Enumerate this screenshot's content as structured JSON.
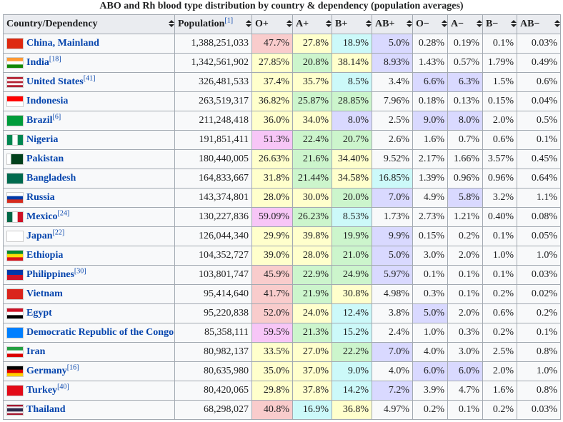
{
  "title": "ABO and Rh blood type distribution by country & dependency (population averages)",
  "table": {
    "headers": [
      {
        "text": "Country/Dependency"
      },
      {
        "text": "Population",
        "ref": "[1]"
      },
      {
        "text": "O+"
      },
      {
        "text": "A+"
      },
      {
        "text": "B+"
      },
      {
        "text": "AB+"
      },
      {
        "text": "O−"
      },
      {
        "text": "A−"
      },
      {
        "text": "B−"
      },
      {
        "text": "AB−"
      }
    ],
    "rows": [
      {
        "country": "China, Mainland",
        "population": "1,388,251,033",
        "cells": [
          "47.7%",
          "27.8%",
          "18.9%",
          "5.0%",
          "0.28%",
          "0.19%",
          "0.1%",
          "0.03%"
        ],
        "colors": [
          "#f9cccc",
          "#ffffcc",
          "#ccf9f9",
          "#d9d9ff",
          "#f8f9fa",
          "#f8f9fa",
          "#f8f9fa",
          "#f8f9fa"
        ]
      },
      {
        "country": "India",
        "ref": "[18]",
        "population": "1,342,561,902",
        "cells": [
          "27.85%",
          "20.8%",
          "38.14%",
          "8.93%",
          "1.43%",
          "0.57%",
          "1.79%",
          "0.49%"
        ],
        "colors": [
          "#ffffcc",
          "#ccf5cc",
          "#ffffcc",
          "#d9d9ff",
          "#f8f9fa",
          "#f8f9fa",
          "#f8f9fa",
          "#f8f9fa"
        ]
      },
      {
        "country": "United States",
        "ref": "[41]",
        "population": "326,481,533",
        "cells": [
          "37.4%",
          "35.7%",
          "8.5%",
          "3.4%",
          "6.6%",
          "6.3%",
          "1.5%",
          "0.6%"
        ],
        "colors": [
          "#ffffcc",
          "#ffffcc",
          "#ccf9f9",
          "#f8f9fa",
          "#d9d9ff",
          "#d9d9ff",
          "#f8f9fa",
          "#f8f9fa"
        ]
      },
      {
        "country": "Indonesia",
        "population": "263,519,317",
        "cells": [
          "36.82%",
          "25.87%",
          "28.85%",
          "7.96%",
          "0.18%",
          "0.13%",
          "0.15%",
          "0.04%"
        ],
        "colors": [
          "#ffffcc",
          "#ccf5cc",
          "#ccf5cc",
          "#f8f9fa",
          "#f8f9fa",
          "#f8f9fa",
          "#f8f9fa",
          "#f8f9fa"
        ]
      },
      {
        "country": "Brazil",
        "ref": "[6]",
        "population": "211,248,418",
        "cells": [
          "36.0%",
          "34.0%",
          "8.0%",
          "2.5%",
          "9.0%",
          "8.0%",
          "2.0%",
          "0.5%"
        ],
        "colors": [
          "#ffffcc",
          "#ffffcc",
          "#d9d9ff",
          "#f8f9fa",
          "#d9d9ff",
          "#d9d9ff",
          "#f8f9fa",
          "#f8f9fa"
        ]
      },
      {
        "country": "Nigeria",
        "population": "191,851,411",
        "cells": [
          "51.3%",
          "22.4%",
          "20.7%",
          "2.6%",
          "1.6%",
          "0.7%",
          "0.6%",
          "0.1%"
        ],
        "colors": [
          "#f7c6f7",
          "#ccf5cc",
          "#ccf5cc",
          "#f8f9fa",
          "#f8f9fa",
          "#f8f9fa",
          "#f8f9fa",
          "#f8f9fa"
        ]
      },
      {
        "country": "Pakistan",
        "population": "180,440,005",
        "cells": [
          "26.63%",
          "21.6%",
          "34.40%",
          "9.52%",
          "2.17%",
          "1.66%",
          "3.57%",
          "0.45%"
        ],
        "colors": [
          "#ffffcc",
          "#ccf5cc",
          "#ffffcc",
          "#f8f9fa",
          "#f8f9fa",
          "#f8f9fa",
          "#f8f9fa",
          "#f8f9fa"
        ]
      },
      {
        "country": "Bangladesh",
        "population": "164,833,667",
        "cells": [
          "31.8%",
          "21.44%",
          "34.58%",
          "16.85%",
          "1.39%",
          "0.96%",
          "0.96%",
          "0.64%"
        ],
        "colors": [
          "#ffffcc",
          "#ccf5cc",
          "#ffffcc",
          "#ccf9f9",
          "#f8f9fa",
          "#f8f9fa",
          "#f8f9fa",
          "#f8f9fa"
        ]
      },
      {
        "country": "Russia",
        "population": "143,374,801",
        "cells": [
          "28.0%",
          "30.0%",
          "20.0%",
          "7.0%",
          "4.9%",
          "5.8%",
          "3.2%",
          "1.1%"
        ],
        "colors": [
          "#ffffcc",
          "#ffffcc",
          "#ccf5cc",
          "#d9d9ff",
          "#f8f9fa",
          "#d9d9ff",
          "#f8f9fa",
          "#f8f9fa"
        ]
      },
      {
        "country": "Mexico",
        "ref": "[24]",
        "population": "130,227,836",
        "cells": [
          "59.09%",
          "26.23%",
          "8.53%",
          "1.73%",
          "2.73%",
          "1.21%",
          "0.40%",
          "0.08%"
        ],
        "colors": [
          "#f7c6f7",
          "#ccf5cc",
          "#ccf9f9",
          "#f8f9fa",
          "#f8f9fa",
          "#f8f9fa",
          "#f8f9fa",
          "#f8f9fa"
        ]
      },
      {
        "country": "Japan",
        "ref": "[22]",
        "population": "126,044,340",
        "cells": [
          "29.9%",
          "39.8%",
          "19.9%",
          "9.9%",
          "0.15%",
          "0.2%",
          "0.1%",
          "0.05%"
        ],
        "colors": [
          "#ffffcc",
          "#ffffcc",
          "#ccf5cc",
          "#d9d9ff",
          "#f8f9fa",
          "#f8f9fa",
          "#f8f9fa",
          "#f8f9fa"
        ]
      },
      {
        "country": "Ethiopia",
        "population": "104,352,727",
        "cells": [
          "39.0%",
          "28.0%",
          "21.0%",
          "5.0%",
          "3.0%",
          "2.0%",
          "1.0%",
          "1.0%"
        ],
        "colors": [
          "#ffffcc",
          "#ffffcc",
          "#ccf5cc",
          "#d9d9ff",
          "#f8f9fa",
          "#f8f9fa",
          "#f8f9fa",
          "#f8f9fa"
        ]
      },
      {
        "country": "Philippines",
        "ref": "[30]",
        "population": "103,801,747",
        "cells": [
          "45.9%",
          "22.9%",
          "24.9%",
          "5.97%",
          "0.1%",
          "0.1%",
          "0.1%",
          "0.03%"
        ],
        "colors": [
          "#f9cccc",
          "#ccf5cc",
          "#ccf5cc",
          "#d9d9ff",
          "#f8f9fa",
          "#f8f9fa",
          "#f8f9fa",
          "#f8f9fa"
        ]
      },
      {
        "country": "Vietnam",
        "population": "95,414,640",
        "cells": [
          "41.7%",
          "21.9%",
          "30.8%",
          "4.98%",
          "0.3%",
          "0.1%",
          "0.2%",
          "0.02%"
        ],
        "colors": [
          "#f9cccc",
          "#ccf5cc",
          "#ffffcc",
          "#f8f9fa",
          "#f8f9fa",
          "#f8f9fa",
          "#f8f9fa",
          "#f8f9fa"
        ]
      },
      {
        "country": "Egypt",
        "population": "95,220,838",
        "cells": [
          "52.0%",
          "24.0%",
          "12.4%",
          "3.8%",
          "5.0%",
          "2.0%",
          "0.6%",
          "0.2%"
        ],
        "colors": [
          "#f9cccc",
          "#ffffcc",
          "#ccf9f9",
          "#f8f9fa",
          "#d9d9ff",
          "#f8f9fa",
          "#f8f9fa",
          "#f8f9fa"
        ]
      },
      {
        "country": "Democratic Republic of the Congo",
        "population": "85,358,111",
        "cells": [
          "59.5%",
          "21.3%",
          "15.2%",
          "2.4%",
          "1.0%",
          "0.3%",
          "0.2%",
          "0.1%"
        ],
        "colors": [
          "#f7c6f7",
          "#ccf5cc",
          "#ccf9f9",
          "#f8f9fa",
          "#f8f9fa",
          "#f8f9fa",
          "#f8f9fa",
          "#f8f9fa"
        ]
      },
      {
        "country": "Iran",
        "population": "80,982,137",
        "cells": [
          "33.5%",
          "27.0%",
          "22.2%",
          "7.0%",
          "4.0%",
          "3.0%",
          "2.5%",
          "0.8%"
        ],
        "colors": [
          "#ffffcc",
          "#ffffcc",
          "#ccf5cc",
          "#d9d9ff",
          "#f8f9fa",
          "#f8f9fa",
          "#f8f9fa",
          "#f8f9fa"
        ]
      },
      {
        "country": "Germany",
        "ref": "[16]",
        "population": "80,635,980",
        "cells": [
          "35.0%",
          "37.0%",
          "9.0%",
          "4.0%",
          "6.0%",
          "6.0%",
          "2.0%",
          "1.0%"
        ],
        "colors": [
          "#ffffcc",
          "#ffffcc",
          "#ccf9f9",
          "#f8f9fa",
          "#d9d9ff",
          "#d9d9ff",
          "#f8f9fa",
          "#f8f9fa"
        ]
      },
      {
        "country": "Turkey",
        "ref": "[40]",
        "population": "80,420,065",
        "cells": [
          "29.8%",
          "37.8%",
          "14.2%",
          "7.2%",
          "3.9%",
          "4.7%",
          "1.6%",
          "0.8%"
        ],
        "colors": [
          "#ffffcc",
          "#ffffcc",
          "#ccf9f9",
          "#d9d9ff",
          "#f8f9fa",
          "#f8f9fa",
          "#f8f9fa",
          "#f8f9fa"
        ]
      },
      {
        "country": "Thailand",
        "population": "68,298,027",
        "cells": [
          "40.8%",
          "16.9%",
          "36.8%",
          "4.97%",
          "0.2%",
          "0.1%",
          "0.2%",
          "0.03%"
        ],
        "colors": [
          "#f9cccc",
          "#ccf9f9",
          "#ffffcc",
          "#f8f9fa",
          "#f8f9fa",
          "#f8f9fa",
          "#f8f9fa",
          "#f8f9fa"
        ]
      }
    ]
  }
}
